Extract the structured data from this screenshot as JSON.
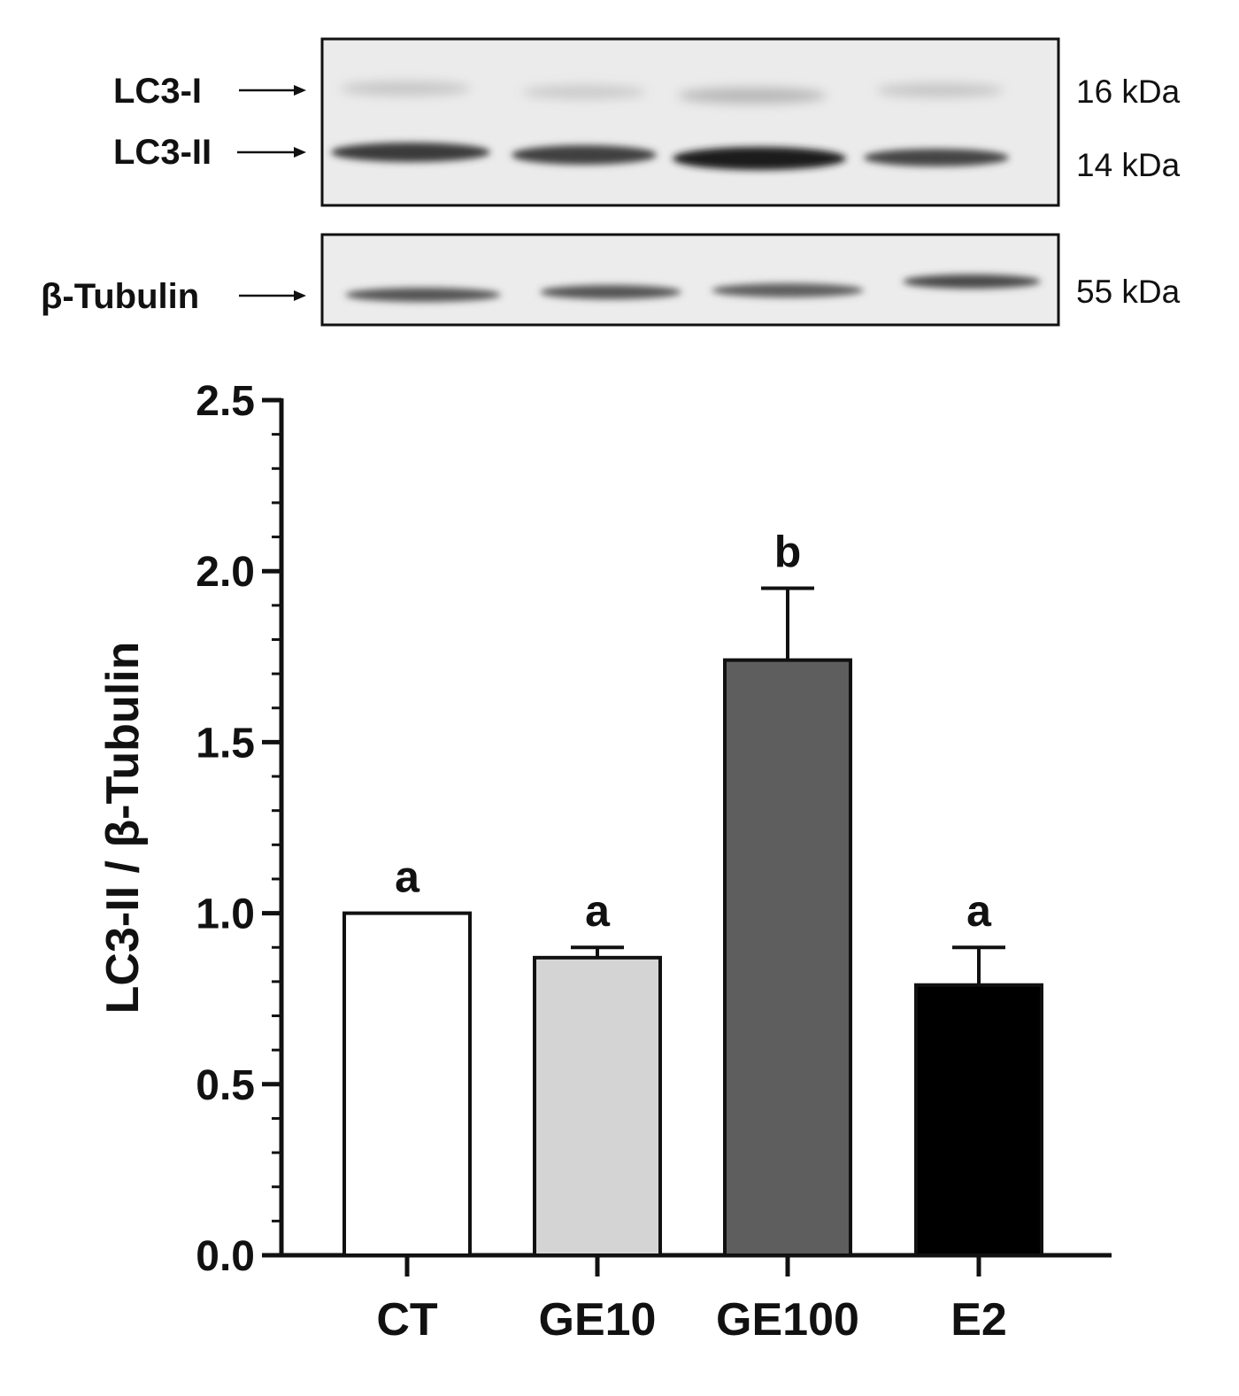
{
  "blot": {
    "lc3_panel": {
      "band_labels": [
        "LC3-I",
        "LC3-II"
      ],
      "markers": [
        "16 kDa",
        "14 kDa"
      ]
    },
    "tubulin_panel": {
      "band_labels": [
        "β-Tubulin"
      ],
      "markers": [
        "55 kDa"
      ]
    }
  },
  "chart_data": {
    "type": "bar",
    "categories": [
      "CT",
      "GE10",
      "GE100",
      "E2"
    ],
    "values": [
      1.0,
      0.87,
      1.74,
      0.79
    ],
    "errors": [
      0.0,
      0.03,
      0.21,
      0.11
    ],
    "significance": [
      "a",
      "a",
      "b",
      "a"
    ],
    "bar_colors": [
      "#ffffff",
      "#d4d4d4",
      "#5e5e5e",
      "#000000"
    ],
    "ylabel": "LC3-II / β-Tubulin",
    "xlabel": "",
    "title": "",
    "ylim": [
      0,
      2.5
    ],
    "yticks": [
      "0.0",
      "0.5",
      "1.0",
      "1.5",
      "2.0",
      "2.5"
    ],
    "grid": false,
    "legend": "none"
  }
}
